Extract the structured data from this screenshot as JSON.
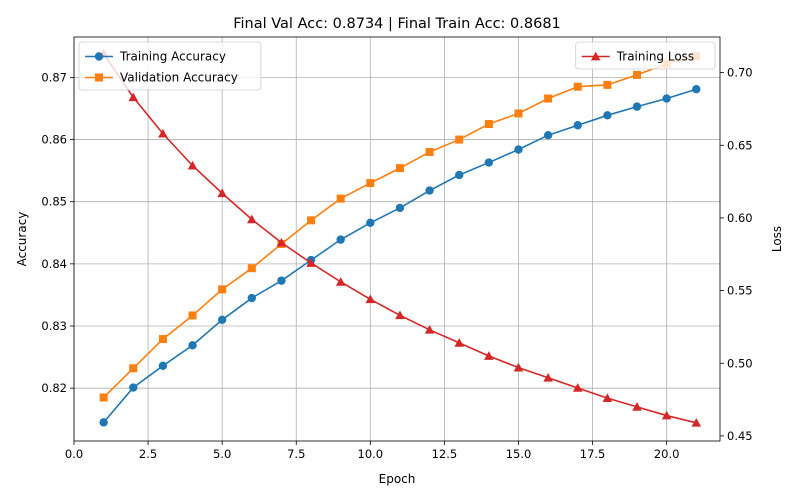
{
  "chart_data": {
    "type": "line",
    "title": "Final Val Acc: 0.8734 | Final Train Acc: 0.8681",
    "xlabel": "Epoch",
    "ylabel_left": "Accuracy",
    "ylabel_right": "Loss",
    "x": [
      1,
      2,
      3,
      4,
      5,
      6,
      7,
      8,
      9,
      10,
      11,
      12,
      13,
      14,
      15,
      16,
      17,
      18,
      19,
      20,
      21
    ],
    "xlim": [
      0,
      21.8
    ],
    "ylim_left": [
      0.8115,
      0.8765
    ],
    "ylim_right": [
      0.4465,
      0.7245
    ],
    "grid": true,
    "x_ticks": [
      0,
      2.5,
      5,
      7.5,
      10,
      12.5,
      15,
      17.5,
      20
    ],
    "x_tick_labels": [
      "0.0",
      "2.5",
      "5.0",
      "7.5",
      "10.0",
      "12.5",
      "15.0",
      "17.5",
      "20.0"
    ],
    "y_left_ticks": [
      0.82,
      0.83,
      0.84,
      0.85,
      0.86,
      0.87
    ],
    "y_left_tick_labels": [
      "0.82",
      "0.83",
      "0.84",
      "0.85",
      "0.86",
      "0.87"
    ],
    "y_right_ticks": [
      0.45,
      0.5,
      0.55,
      0.6,
      0.65,
      0.7
    ],
    "y_right_tick_labels": [
      "0.45",
      "0.50",
      "0.55",
      "0.60",
      "0.65",
      "0.70"
    ],
    "series": [
      {
        "name": "Training Accuracy",
        "axis": "left",
        "color": "#1f77b4",
        "marker": "circle",
        "values": [
          0.8145,
          0.8201,
          0.8236,
          0.8269,
          0.831,
          0.8345,
          0.8373,
          0.8406,
          0.8439,
          0.8466,
          0.849,
          0.8518,
          0.8543,
          0.8563,
          0.8584,
          0.8607,
          0.8623,
          0.8639,
          0.8653,
          0.8666,
          0.8681
        ]
      },
      {
        "name": "Validation Accuracy",
        "axis": "left",
        "color": "#ff7f0e",
        "marker": "square",
        "values": [
          0.8185,
          0.8232,
          0.8279,
          0.8317,
          0.8359,
          0.8393,
          0.8432,
          0.847,
          0.8505,
          0.853,
          0.8554,
          0.858,
          0.86,
          0.8625,
          0.8642,
          0.8666,
          0.8685,
          0.8688,
          0.8704,
          0.8722,
          0.8734
        ]
      },
      {
        "name": "Training Loss",
        "axis": "right",
        "color": "#d62728",
        "marker": "triangle",
        "values": [
          0.713,
          0.683,
          0.658,
          0.636,
          0.617,
          0.599,
          0.583,
          0.569,
          0.556,
          0.544,
          0.533,
          0.523,
          0.514,
          0.505,
          0.497,
          0.49,
          0.483,
          0.476,
          0.47,
          0.464,
          0.459
        ]
      }
    ],
    "legends": [
      {
        "placement": "upper-left",
        "entries": [
          "Training Accuracy",
          "Validation Accuracy"
        ]
      },
      {
        "placement": "upper-right",
        "entries": [
          "Training Loss"
        ]
      }
    ]
  }
}
